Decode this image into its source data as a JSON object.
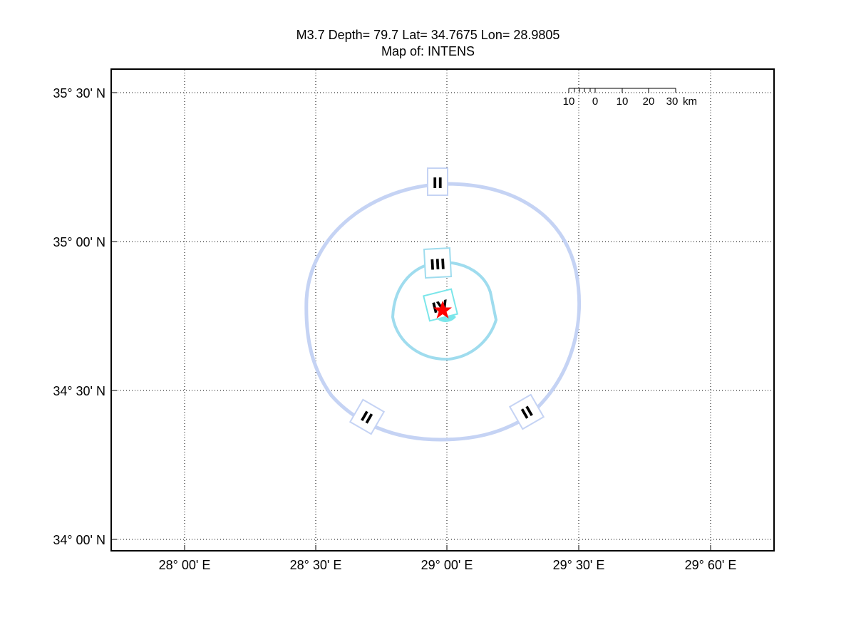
{
  "title": {
    "line1": "M3.7 Depth= 79.7 Lat= 34.7675 Lon= 28.9805",
    "line2": "Map of: INTENS"
  },
  "axes": {
    "x_ticks": [
      "28° 00' E",
      "28° 30' E",
      "29° 00' E",
      "29° 30' E",
      "29° 60' E"
    ],
    "y_ticks": [
      "35° 30' N",
      "35° 00' N",
      "34° 30' N",
      "34° 00' N"
    ],
    "grid": true
  },
  "scale_bar": {
    "labels": [
      "10",
      "0",
      "10",
      "20",
      "30"
    ],
    "unit": "km"
  },
  "contours": [
    {
      "label": "II",
      "color": "#c5d3f4"
    },
    {
      "label": "III",
      "color": "#9fdcee"
    },
    {
      "label": "IV",
      "color": "#7be6ea"
    }
  ],
  "contour_labels": [
    "II",
    "III",
    "IV",
    "II",
    "II"
  ],
  "epicenter": {
    "lat": 34.7675,
    "lon": 28.9805,
    "color": "#ff0000",
    "icon": "star-icon"
  }
}
